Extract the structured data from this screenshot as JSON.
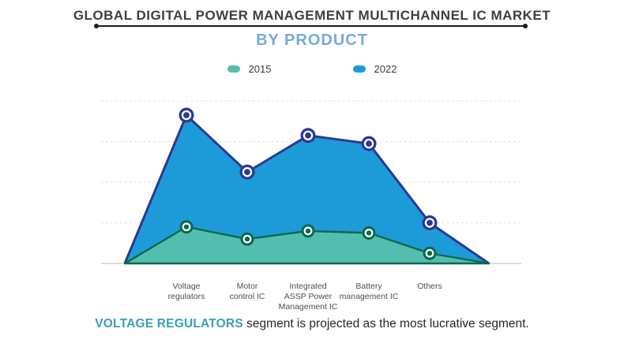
{
  "header": {
    "title": "GLOBAL DIGITAL POWER MANAGEMENT MULTICHANNEL IC MARKET",
    "subtitle": "BY PRODUCT"
  },
  "legend": {
    "items": [
      {
        "label": "2015",
        "color": "#53beb0"
      },
      {
        "label": "2022",
        "color": "#1d9bd8"
      }
    ]
  },
  "chart_data": {
    "type": "area",
    "title": "GLOBAL DIGITAL POWER MANAGEMENT MULTICHANNEL IC MARKET",
    "subtitle": "BY PRODUCT",
    "categories": [
      "Voltage regulators",
      "Motor control IC",
      "Integrated ASSP Power Management IC",
      "Battery management IC",
      "Others"
    ],
    "category_label_lines": [
      [
        "Voltage",
        "regulators"
      ],
      [
        "Motor",
        "control IC"
      ],
      [
        "Integrated",
        "ASSP Power",
        "Management IC"
      ],
      [
        "Battery",
        "management IC"
      ],
      [
        "Others"
      ]
    ],
    "series": [
      {
        "name": "2015",
        "values": [
          0.9,
          0.6,
          0.8,
          0.75,
          0.25
        ],
        "fill": "#53beb0",
        "stroke": "#0b6a4c"
      },
      {
        "name": "2022",
        "values": [
          3.65,
          2.25,
          3.15,
          2.95,
          1.0
        ],
        "fill": "#1d9bd8",
        "stroke": "#2b3990"
      }
    ],
    "area_drops_to_zero_at_edges": true,
    "ylim": [
      0,
      4
    ],
    "gridlines": [
      1,
      2,
      3,
      4
    ],
    "grid_style": "dashed",
    "y_axis_labels_visible": false,
    "legend_position": "top"
  },
  "caption": {
    "highlight": "VOLTAGE REGULATORS",
    "text": " segment is projected as the most lucrative segment."
  },
  "colors": {
    "subtitle": "#76a9dc",
    "caption_highlight": "#399fb4",
    "gridline": "#dbdbdb",
    "baseline": "#c8c8c8"
  }
}
